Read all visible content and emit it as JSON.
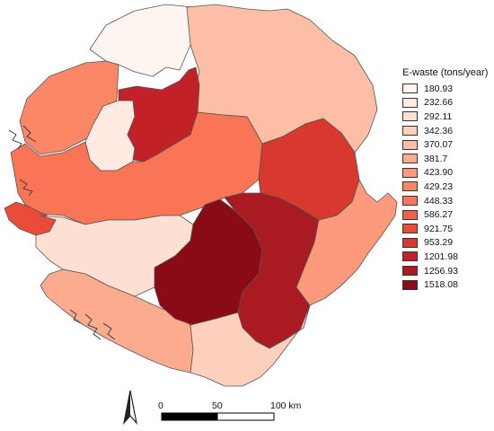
{
  "legend": {
    "title": "E-waste (tons/year)",
    "classes": [
      {
        "label": "180.93",
        "color": "#fff5f0"
      },
      {
        "label": "232.66",
        "color": "#feeae0"
      },
      {
        "label": "292.11",
        "color": "#fde0d2"
      },
      {
        "label": "342.36",
        "color": "#fcd0bc"
      },
      {
        "label": "370.07",
        "color": "#fcbea5"
      },
      {
        "label": "381.7",
        "color": "#fcab8f"
      },
      {
        "label": "423.90",
        "color": "#fc9a7b"
      },
      {
        "label": "429.23",
        "color": "#fb8767"
      },
      {
        "label": "448.33",
        "color": "#f97556"
      },
      {
        "label": "586.27",
        "color": "#f26147"
      },
      {
        "label": "921.75",
        "color": "#e94c39"
      },
      {
        "label": "953.29",
        "color": "#d7392f"
      },
      {
        "label": "1201.98",
        "color": "#c22127"
      },
      {
        "label": "1256.93",
        "color": "#a91a21"
      },
      {
        "label": "1518.08",
        "color": "#8a0b16"
      }
    ]
  },
  "scale_bar": {
    "labels": [
      "0",
      "50",
      "100 km"
    ]
  },
  "north_arrow": {
    "icon": "north-arrow-icon"
  },
  "districts": [
    {
      "id": "north-top",
      "value": "180.93",
      "color": "#fff5f0"
    },
    {
      "id": "bombali-center",
      "value": "232.66",
      "color": "#feeae0"
    },
    {
      "id": "south-coast",
      "value": "292.11",
      "color": "#fde0d2"
    },
    {
      "id": "southeast",
      "value": "342.36",
      "color": "#fcd0bc"
    },
    {
      "id": "koinadugu",
      "value": "370.07",
      "color": "#fcbea5"
    },
    {
      "id": "southwest",
      "value": "381.7",
      "color": "#fcab8f"
    },
    {
      "id": "kailahun-east",
      "value": "423.90",
      "color": "#fc9a7b"
    },
    {
      "id": "port-loko-north",
      "value": "429.23",
      "color": "#fb8767"
    },
    {
      "id": "central",
      "value": "448.33",
      "color": "#f97556"
    },
    {
      "id": "kambia",
      "value": "586.27",
      "color": "#f26147"
    },
    {
      "id": "western-area",
      "value": "921.75",
      "color": "#e94c39"
    },
    {
      "id": "kono",
      "value": "953.29",
      "color": "#d7392f"
    },
    {
      "id": "tonkolili",
      "value": "1201.98",
      "color": "#c22127"
    },
    {
      "id": "kenema",
      "value": "1256.93",
      "color": "#a91a21"
    },
    {
      "id": "bo",
      "value": "1518.08",
      "color": "#8a0b16"
    }
  ]
}
